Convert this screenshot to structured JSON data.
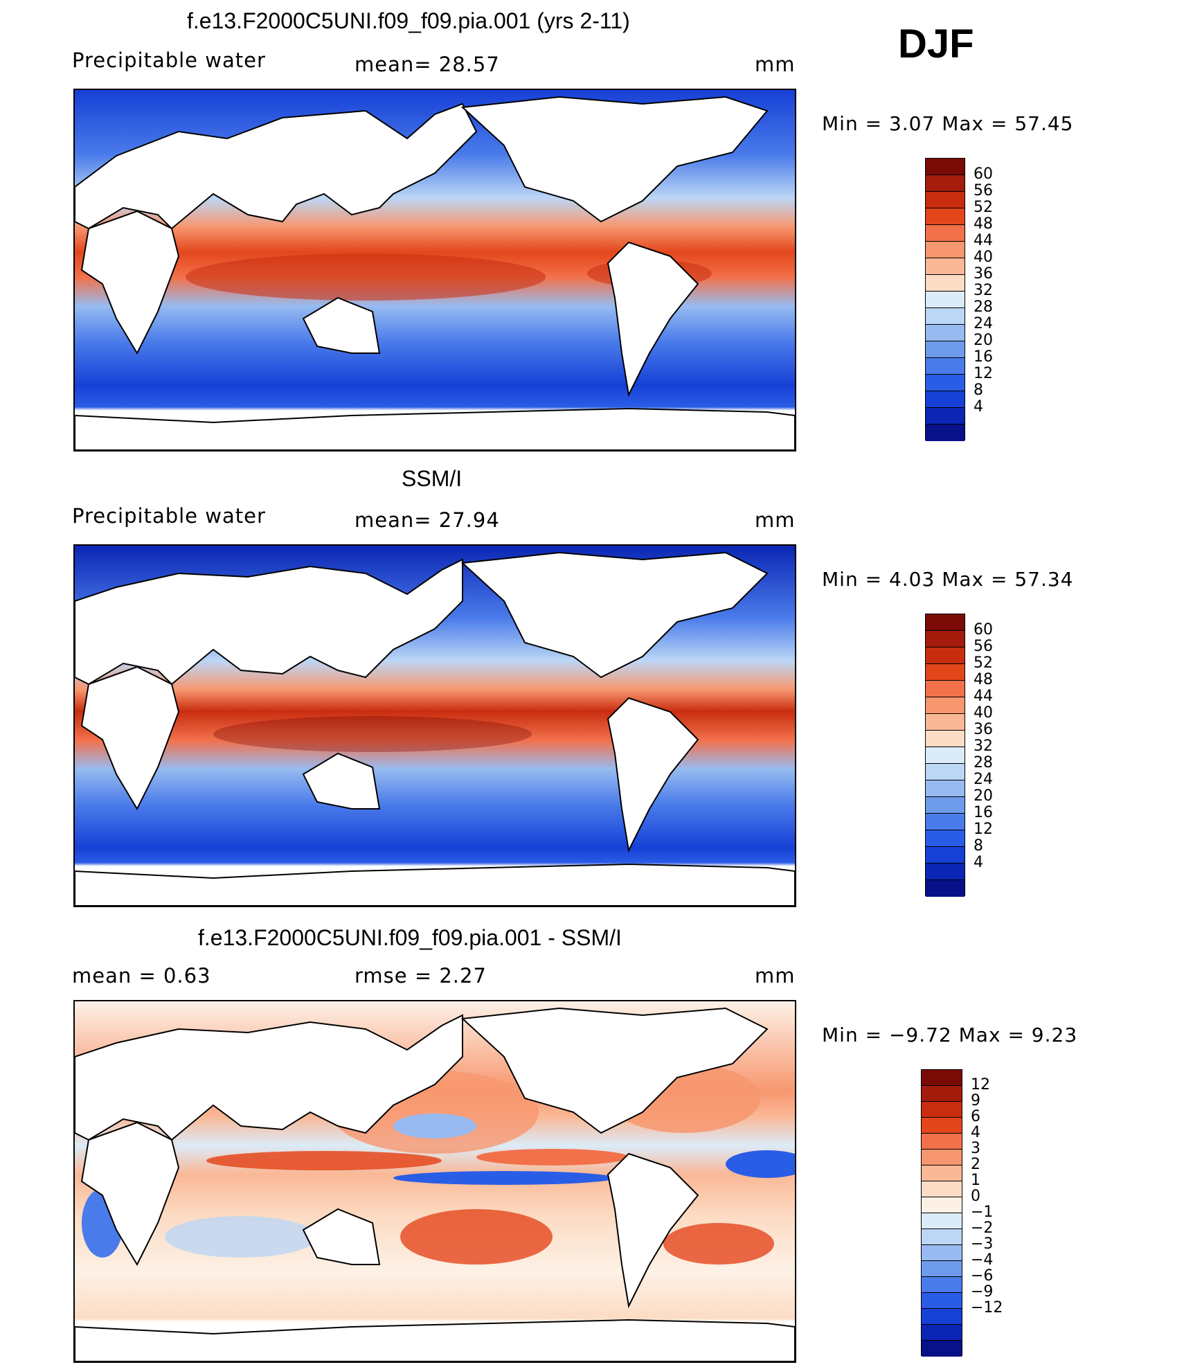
{
  "season": "DJF",
  "panels": [
    {
      "title": "f.e13.F2000C5UNI.f09_f09.pia.001 (yrs 2-11)",
      "variable": "Precipitable water",
      "stat1": "mean=   28.57",
      "stat2": "",
      "units": "mm",
      "minmax": "Min =     3.07  Max =    57.45",
      "colorbar": {
        "colors": [
          "#7a0a06",
          "#a31c0c",
          "#c92d0f",
          "#e4461c",
          "#f2714b",
          "#f7976f",
          "#fab896",
          "#fcdcc4",
          "#dcebf8",
          "#bcd6f5",
          "#97bbf0",
          "#6f9bec",
          "#4a7bea",
          "#2a5de6",
          "#1640d6",
          "#0b26b4",
          "#081188"
        ],
        "labels": [
          "60",
          "56",
          "52",
          "48",
          "44",
          "40",
          "36",
          "32",
          "28",
          "24",
          "20",
          "16",
          "12",
          "8",
          "4"
        ]
      }
    },
    {
      "title": "SSM/I",
      "variable": "Precipitable water",
      "stat1": "mean=   27.94",
      "stat2": "",
      "units": "mm",
      "minmax": "Min =     4.03  Max =    57.34",
      "colorbar": {
        "colors": [
          "#7a0a06",
          "#a31c0c",
          "#c92d0f",
          "#e4461c",
          "#f2714b",
          "#f7976f",
          "#fab896",
          "#fcdcc4",
          "#dcebf8",
          "#bcd6f5",
          "#97bbf0",
          "#6f9bec",
          "#4a7bea",
          "#2a5de6",
          "#1640d6",
          "#0b26b4",
          "#081188"
        ],
        "labels": [
          "60",
          "56",
          "52",
          "48",
          "44",
          "40",
          "36",
          "32",
          "28",
          "24",
          "20",
          "16",
          "12",
          "8",
          "4"
        ]
      }
    },
    {
      "title": "f.e13.F2000C5UNI.f09_f09.pia.001 - SSM/I",
      "variable": "mean =      0.63",
      "stat1": "rmse =      2.27",
      "stat2": "",
      "units": "mm",
      "minmax": "Min =   −9.72  Max =       9.23",
      "colorbar": {
        "colors": [
          "#7a0a06",
          "#a31c0c",
          "#c92d0f",
          "#e4461c",
          "#f2714b",
          "#f7976f",
          "#fab896",
          "#fcdcc4",
          "#fdf1e6",
          "#dcebf8",
          "#bcd6f5",
          "#97bbf0",
          "#6f9bec",
          "#4a7bea",
          "#2a5de6",
          "#1640d6",
          "#0b26b4",
          "#081188"
        ],
        "labels": [
          "12",
          "9",
          "6",
          "4",
          "3",
          "2",
          "1",
          "0",
          "−1",
          "−2",
          "−3",
          "−4",
          "−6",
          "−9",
          "−12"
        ]
      }
    }
  ],
  "colors": {
    "warm_max": "#7a0a06",
    "warm": "#e4461c",
    "neutral_warm": "#fcdcc4",
    "neutral_cool": "#dcebf8",
    "cool": "#4a7bea",
    "cool_max": "#081188"
  }
}
